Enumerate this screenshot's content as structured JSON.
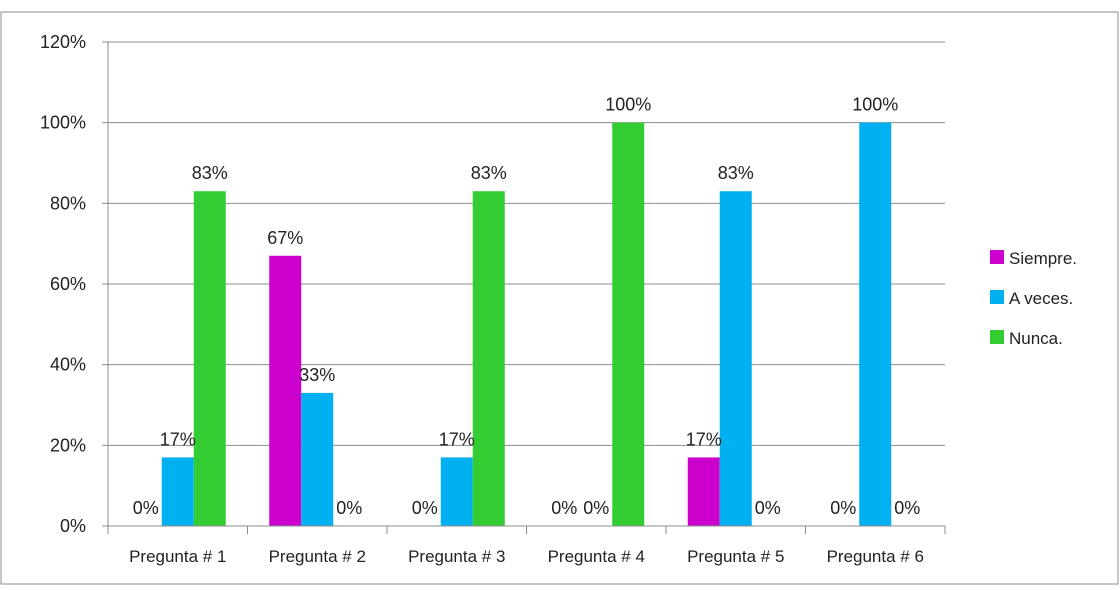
{
  "chart_data": {
    "type": "bar",
    "title": "",
    "xlabel": "",
    "ylabel": "",
    "categories": [
      "Pregunta # 1",
      "Pregunta # 2",
      "Pregunta # 3",
      "Pregunta # 4",
      "Pregunta # 5",
      "Pregunta # 6"
    ],
    "series": [
      {
        "name": "Siempre.",
        "color": "#cc00cc",
        "values": [
          0,
          67,
          0,
          0,
          17,
          0
        ],
        "labels": [
          "0%",
          "67%",
          "0%",
          "0%",
          "17%",
          "0%"
        ]
      },
      {
        "name": "A veces.",
        "color": "#00b0f0",
        "values": [
          17,
          33,
          17,
          0,
          83,
          100
        ],
        "labels": [
          "17%",
          "33%",
          "17%",
          "0%",
          "83%",
          "100%"
        ]
      },
      {
        "name": "Nunca.",
        "color": "#33cc33",
        "values": [
          83,
          0,
          83,
          100,
          0,
          0
        ],
        "labels": [
          "83%",
          "0%",
          "83%",
          "100%",
          "0%",
          "0%"
        ]
      }
    ],
    "ylim": [
      0,
      120
    ],
    "yticks": [
      0,
      20,
      40,
      60,
      80,
      100,
      120
    ],
    "ytick_labels": [
      "0%",
      "20%",
      "40%",
      "60%",
      "80%",
      "100%",
      "120%"
    ],
    "grid": true,
    "legend": "right"
  }
}
